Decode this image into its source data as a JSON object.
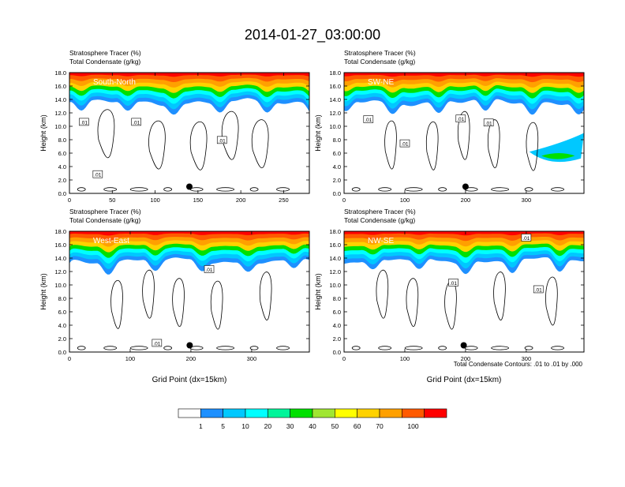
{
  "title": "2014-01-27_03:00:00",
  "colorbar": {
    "labels": [
      "1",
      "5",
      "10",
      "20",
      "30",
      "40",
      "50",
      "60",
      "70",
      "100"
    ],
    "colors": [
      "#ffffff",
      "#1e90ff",
      "#00c8ff",
      "#00ffff",
      "#00f59a",
      "#00e000",
      "#a0e632",
      "#ffff00",
      "#ffd200",
      "#ffa000",
      "#ff5a00",
      "#ff0000"
    ]
  },
  "footnote": "Total Condensate Contours: .01 to .01 by .000",
  "chart_data": [
    {
      "type": "contour",
      "title_line1": "Stratosphere Tracer   (%)",
      "title_line2": "Total Condensate   (g/kg)",
      "panel_label": "South-North",
      "ylabel": "Height (km)",
      "xlabel": "",
      "xlim": [
        0,
        280
      ],
      "ylim": [
        0,
        18
      ],
      "xticks": [
        "0",
        "50",
        "100",
        "150",
        "200",
        "250"
      ],
      "xtick_values": [
        0,
        50,
        100,
        150,
        200,
        250
      ],
      "yticks": [
        "0.0",
        "2.0",
        "4.0",
        "6.0",
        "8.0",
        "10.0",
        "12.0",
        "14.0",
        "16.0",
        "18.0"
      ],
      "marker": {
        "x": 140,
        "y": 1.0
      },
      "contour_labels": [
        {
          "text": ".01",
          "x": 17,
          "y": 10.6
        },
        {
          "text": ".01",
          "x": 78,
          "y": 10.6
        },
        {
          "text": ".01",
          "x": 178,
          "y": 7.9
        },
        {
          "text": ".01",
          "x": 33,
          "y": 2.8
        }
      ]
    },
    {
      "type": "contour",
      "title_line1": "Stratosphere Tracer   (%)",
      "title_line2": "Total Condensate   (g/kg)",
      "panel_label": "SW-NE",
      "ylabel": "Height (km)",
      "xlabel": "",
      "xlim": [
        0,
        395
      ],
      "ylim": [
        0,
        18
      ],
      "xticks": [
        "0",
        "100",
        "200",
        "300"
      ],
      "xtick_values": [
        0,
        100,
        200,
        300
      ],
      "yticks": [
        "0.0",
        "2.0",
        "4.0",
        "6.0",
        "8.0",
        "10.0",
        "12.0",
        "14.0",
        "16.0",
        "18.0"
      ],
      "marker": {
        "x": 200,
        "y": 1.0
      },
      "contour_labels": [
        {
          "text": ".01",
          "x": 40,
          "y": 11.0
        },
        {
          "text": ".01",
          "x": 192,
          "y": 11.1
        },
        {
          "text": ".01",
          "x": 238,
          "y": 10.5
        },
        {
          "text": ".01",
          "x": 100,
          "y": 7.4
        }
      ]
    },
    {
      "type": "contour",
      "title_line1": "Stratosphere Tracer   (%)",
      "title_line2": "Total Condensate   (g/kg)",
      "panel_label": "West-East",
      "ylabel": "Height (km)",
      "xlabel": "Grid Point (dx=15km)",
      "xlim": [
        0,
        395
      ],
      "ylim": [
        0,
        18
      ],
      "xticks": [
        "0",
        "100",
        "200",
        "300"
      ],
      "xtick_values": [
        0,
        100,
        200,
        300
      ],
      "yticks": [
        "0.0",
        "2.0",
        "4.0",
        "6.0",
        "8.0",
        "10.0",
        "12.0",
        "14.0",
        "16.0",
        "18.0"
      ],
      "marker": {
        "x": 198,
        "y": 1.0
      },
      "contour_labels": [
        {
          "text": ".01",
          "x": 230,
          "y": 12.3
        },
        {
          "text": ".01",
          "x": 144,
          "y": 1.3
        }
      ]
    },
    {
      "type": "contour",
      "title_line1": "Stratosphere Tracer   (%)",
      "title_line2": "Total Condensate   (g/kg)",
      "panel_label": "NW-SE",
      "ylabel": "Height (km)",
      "xlabel": "Grid Point (dx=15km)",
      "xlim": [
        0,
        395
      ],
      "ylim": [
        0,
        18
      ],
      "xticks": [
        "0",
        "100",
        "200",
        "300"
      ],
      "xtick_values": [
        0,
        100,
        200,
        300
      ],
      "yticks": [
        "0.0",
        "2.0",
        "4.0",
        "6.0",
        "8.0",
        "10.0",
        "12.0",
        "14.0",
        "16.0",
        "18.0"
      ],
      "marker": {
        "x": 197,
        "y": 1.0
      },
      "contour_labels": [
        {
          "text": ".01",
          "x": 300,
          "y": 17.0
        },
        {
          "text": ".01",
          "x": 180,
          "y": 10.3
        },
        {
          "text": ".01",
          "x": 320,
          "y": 9.3
        }
      ]
    }
  ]
}
